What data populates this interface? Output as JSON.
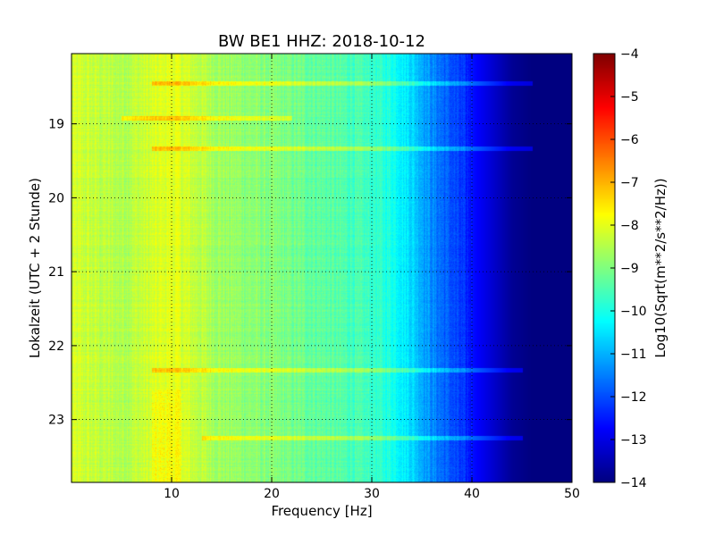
{
  "chart_data": {
    "type": "heatmap",
    "title": "BW BE1 HHZ: 2018-10-12",
    "xlabel": "Frequency [Hz]",
    "ylabel": "Lokalzeit (UTC + 2 Stunde)",
    "xlim": [
      0,
      50
    ],
    "ylim": [
      18.05,
      23.85
    ],
    "y_inverted": true,
    "x_ticks": [
      10,
      20,
      30,
      40,
      50
    ],
    "x_tick_labels": [
      "10",
      "20",
      "30",
      "40",
      "50"
    ],
    "y_ticks": [
      19,
      20,
      21,
      22,
      23
    ],
    "y_tick_labels": [
      "19",
      "20",
      "21",
      "22",
      "23"
    ],
    "grid": true,
    "colormap": "jet",
    "colorbar": {
      "label": "Log10(Sqrt(m**2/s**2/Hz))",
      "range": [
        -14,
        -4
      ],
      "ticks": [
        -4,
        -5,
        -6,
        -7,
        -8,
        -9,
        -10,
        -11,
        -12,
        -13,
        -14
      ],
      "tick_labels": [
        "−4",
        "−5",
        "−6",
        "−7",
        "−8",
        "−9",
        "−10",
        "−11",
        "−12",
        "−13",
        "−14"
      ]
    },
    "spectrum_profile": {
      "frequency_hz": [
        0,
        5,
        10,
        15,
        20,
        25,
        30,
        32,
        34,
        36,
        38,
        40,
        42,
        44,
        46,
        50
      ],
      "log_amplitude": [
        -8.2,
        -8.5,
        -8.0,
        -8.7,
        -9.0,
        -9.3,
        -9.7,
        -10.0,
        -10.6,
        -11.4,
        -12.0,
        -12.6,
        -13.2,
        -13.8,
        -14.0,
        -14.0
      ]
    },
    "horizontal_bands": [
      {
        "time": 18.45,
        "fmin": 8,
        "fmax": 46
      },
      {
        "time": 18.92,
        "fmin": 5,
        "fmax": 22
      },
      {
        "time": 19.33,
        "fmin": 8,
        "fmax": 46
      },
      {
        "time": 22.33,
        "fmin": 8,
        "fmax": 45
      },
      {
        "time": 23.25,
        "fmin": 13,
        "fmax": 45
      }
    ]
  }
}
